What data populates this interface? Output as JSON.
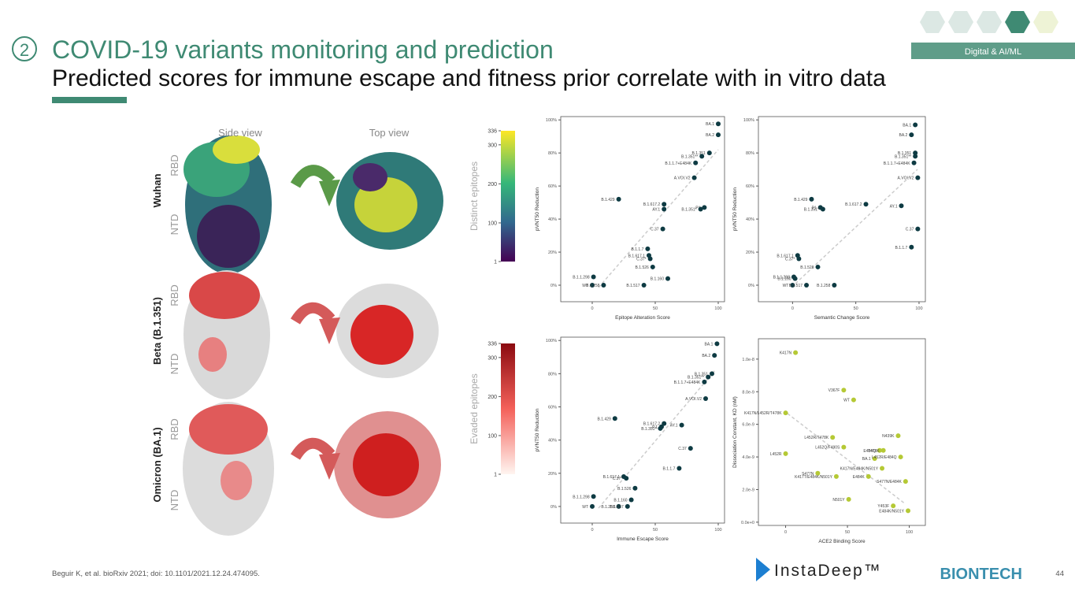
{
  "header": {
    "number": "2",
    "title": "COVID-19 variants monitoring and prediction",
    "subtitle": "Predicted scores for immune escape and fitness prior correlate with in vitro data",
    "tag": "Digital & AI/ML"
  },
  "figure": {
    "view_labels": [
      "Side view",
      "Top view"
    ],
    "rows": [
      {
        "name": "Wuhan",
        "parts": [
          "RBD",
          "NTD"
        ]
      },
      {
        "name": "Beta  (B.1.351)",
        "parts": [
          "RBD",
          "NTD"
        ]
      },
      {
        "name": "Omicron (BA.1)",
        "parts": [
          "RBD",
          "NTD"
        ]
      }
    ],
    "colorbars": [
      {
        "label": "Distinct epitopes",
        "lim": [
          1,
          336
        ],
        "ticks": [
          1,
          100,
          200,
          300,
          336
        ]
      },
      {
        "label": "Evaded epitopes",
        "lim": [
          1,
          336
        ],
        "ticks": [
          1,
          100,
          200,
          300,
          336
        ]
      }
    ]
  },
  "plots": [
    {
      "type": "scatter",
      "xlabel": "Epitope Alteration Score",
      "ylabel": "pVNT50 Reduction",
      "color": "#0e3b43",
      "xlim": [
        -25,
        105
      ],
      "ylim": [
        -10,
        102
      ],
      "xticks": [
        0,
        50,
        100
      ],
      "yticks": [
        {
          "value": 0,
          "label": "0%"
        },
        {
          "value": 20,
          "label": "20%"
        },
        {
          "value": 40,
          "label": "40%"
        },
        {
          "value": 60,
          "label": "60%"
        },
        {
          "value": 80,
          "label": "80%"
        },
        {
          "value": 100,
          "label": "100%"
        }
      ],
      "labels": [
        "BA.1",
        "BA.2",
        "B.1.351",
        "B.1.351**",
        "B.1.1.7+E484K",
        "A.VOI.V2",
        "B.1.429",
        "B.1.617.2",
        "AY.1",
        "P1",
        "B.1.351*",
        "C.37",
        "B.1.1.7",
        "B.1.617.1",
        "C.37*",
        "B.1.526",
        "B.1.160",
        "B.1.1.298",
        "WT",
        "B.1.258",
        "B.1.517"
      ],
      "x": [
        100,
        100,
        93,
        87,
        82,
        81,
        21,
        57,
        57,
        89,
        86,
        56,
        44,
        45,
        46,
        48,
        60,
        1,
        0,
        9,
        41
      ],
      "y": [
        97.6,
        91,
        80,
        78,
        74,
        65,
        52,
        49,
        46,
        47,
        46,
        34,
        22,
        18,
        16,
        11,
        4,
        5,
        0,
        0,
        0
      ]
    },
    {
      "type": "scatter",
      "xlabel": "Semantic Change Score",
      "ylabel": "pVNT50 Reduction",
      "color": "#0e3b43",
      "xlim": [
        -27,
        105
      ],
      "ylim": [
        -10,
        102
      ],
      "xticks": [
        0,
        50,
        100
      ],
      "yticks": [
        {
          "value": 0,
          "label": "0%"
        },
        {
          "value": 20,
          "label": "20%"
        },
        {
          "value": 40,
          "label": "40%"
        },
        {
          "value": 60,
          "label": "60%"
        },
        {
          "value": 80,
          "label": "80%"
        },
        {
          "value": 100,
          "label": "100%"
        }
      ],
      "labels": [
        "BA.1",
        "BA.2",
        "B.1.351",
        "B.1.351**",
        "B.1.1.7+E484K",
        "A.VOI.V2",
        "B.1.429",
        "P1",
        "B.1.351*",
        "B.1.617.2",
        "AY.1",
        "C.37",
        "B.1.1.7",
        "B.1.617.1",
        "C.37*",
        "B.1.526",
        "B.1.1.298",
        "B.1.160",
        "WT",
        "B.1.517",
        "B.1.258"
      ],
      "x": [
        97,
        94,
        97,
        97,
        96,
        99,
        15,
        22,
        24,
        58,
        86,
        99,
        94,
        4,
        5,
        20,
        1,
        2,
        0,
        11,
        33
      ],
      "y": [
        97,
        91,
        80,
        78,
        74,
        65,
        52,
        47,
        46,
        49,
        48,
        34,
        23,
        18,
        16,
        11,
        5,
        4,
        0,
        0,
        0
      ]
    },
    {
      "type": "scatter",
      "xlabel": "Immune Escape Score",
      "ylabel": "pVNT50 Reduction",
      "color": "#0e3b43",
      "xlim": [
        -25,
        105
      ],
      "ylim": [
        -10,
        102
      ],
      "xticks": [
        0,
        50,
        100
      ],
      "yticks": [
        {
          "value": 0,
          "label": "0%"
        },
        {
          "value": 20,
          "label": "20%"
        },
        {
          "value": 40,
          "label": "40%"
        },
        {
          "value": 60,
          "label": "60%"
        },
        {
          "value": 80,
          "label": "80%"
        },
        {
          "value": 100,
          "label": "100%"
        }
      ],
      "labels": [
        "BA.1",
        "BA.2",
        "B.1.351",
        "B.1.351**",
        "B.1.1.7+E484K",
        "A.VOI.V2",
        "B.1.429",
        "P.1",
        "B.1.617.2",
        "AY.1",
        "B.1.351*",
        "C.37",
        "B.1.1.7",
        "B.1.617.1",
        "C.37*",
        "B.1.526",
        "B.1.160",
        "B.1.1.298",
        "WT",
        "B.1.258",
        "B.1.517"
      ],
      "x": [
        99,
        97,
        95,
        92,
        89,
        90,
        18,
        55,
        57,
        71,
        54,
        78,
        69,
        25,
        27,
        34,
        31,
        1,
        0,
        21,
        28
      ],
      "y": [
        98,
        91,
        80,
        78,
        75,
        65,
        53,
        48,
        50,
        49,
        47,
        35,
        23,
        18,
        17,
        11,
        4,
        6,
        0,
        0,
        0
      ]
    },
    {
      "type": "scatter",
      "xlabel": "ACE2 Binding Score",
      "ylabel": "Dissociation Constant, KD (nM)",
      "color": "#b5c935",
      "xlim": [
        -22,
        113
      ],
      "ylim": [
        -2e-10,
        1.125e-08
      ],
      "xticks": [
        0,
        50,
        100
      ],
      "yticks": [
        {
          "value": 0,
          "label": "0.0e+0"
        },
        {
          "value": 2e-09,
          "label": "2.0e-9"
        },
        {
          "value": 4e-09,
          "label": "4.0e-9"
        },
        {
          "value": 6e-09,
          "label": "6.0e-9"
        },
        {
          "value": 8e-09,
          "label": "8.0e-9"
        },
        {
          "value": 1e-08,
          "label": "1.0e-8"
        }
      ],
      "labels": [
        "K417N",
        "V367F",
        "WT",
        "K417N/L452R/T478K",
        "L452R/T478K",
        "L452Q/F490S",
        "N439K",
        "E484Q",
        "T478K",
        "L452R",
        "BA.1",
        "L452R/E484Q",
        "K417N/E484K/N501Y",
        "S477N",
        "K417T/E484K/N501Y",
        "E484K",
        "S477N/E484K",
        "N501Y",
        "Y453F",
        "E484K/N501Y"
      ],
      "x": [
        8,
        47,
        55,
        0,
        38,
        47,
        91,
        76,
        79,
        0,
        72,
        93,
        78,
        26,
        41,
        67,
        97,
        51,
        87,
        99
      ],
      "y": [
        1.04e-08,
        8.1e-09,
        7.5e-09,
        6.7e-09,
        5.2e-09,
        4.6e-09,
        5.3e-09,
        4.4e-09,
        4.4e-09,
        4.2e-09,
        3.9e-09,
        4e-09,
        3.3e-09,
        3e-09,
        2.8e-09,
        2.8e-09,
        2.5e-09,
        1.4e-09,
        1e-09,
        7e-10
      ]
    }
  ],
  "footer": {
    "citation": "Beguir K, et al. bioRxiv 2021; doi: 10.1101/2021.12.24.474095.",
    "page": "44",
    "logos": [
      "InstaDeep™",
      "BIONTECH"
    ]
  }
}
